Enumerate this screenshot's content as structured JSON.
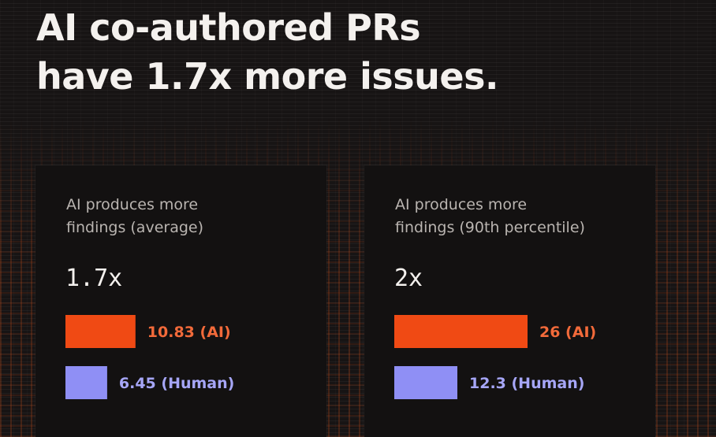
{
  "headline": {
    "line1": "AI co-authored PRs",
    "line2": "have 1.7x more issues."
  },
  "colors": {
    "ai": "#f04a14",
    "human": "#8f8ff5",
    "ai_label": "#f26a3a",
    "human_label": "#a6a6f7"
  },
  "chart_data": [
    {
      "type": "bar",
      "title_line1": "AI produces more",
      "title_line2": "findings (average)",
      "multiplier": "1.7x",
      "categories": [
        "AI",
        "Human"
      ],
      "values": [
        10.83,
        6.45
      ],
      "labels": [
        "10.83 (AI)",
        "6.45 (Human)"
      ]
    },
    {
      "type": "bar",
      "title_line1": "AI produces more",
      "title_line2": "findings (90th percentile)",
      "multiplier": "2x",
      "categories": [
        "AI",
        "Human"
      ],
      "values": [
        26,
        12.3
      ],
      "labels": [
        "26 (AI)",
        "12.3 (Human)"
      ]
    }
  ]
}
